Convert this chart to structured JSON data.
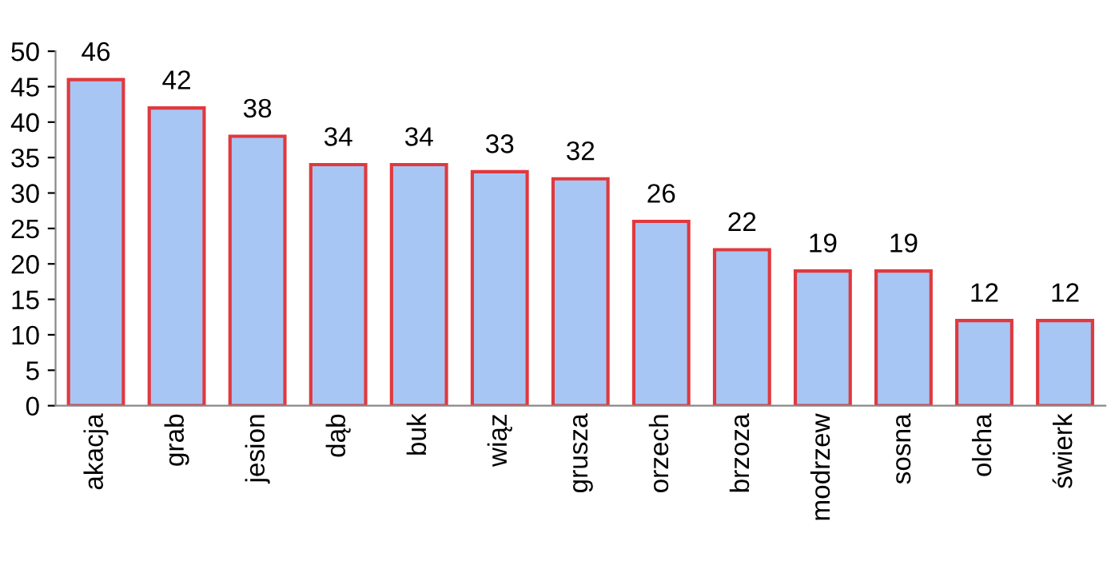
{
  "chart_data": {
    "type": "bar",
    "categories": [
      "akacja",
      "grab",
      "jesion",
      "dąb",
      "buk",
      "wiąz",
      "grusza",
      "orzech",
      "brzoza",
      "modrzew",
      "sosna",
      "olcha",
      "świerk"
    ],
    "values": [
      46,
      42,
      38,
      34,
      34,
      33,
      32,
      26,
      22,
      19,
      19,
      12,
      12
    ],
    "color": "#a8c6f4",
    "ylim": [
      0,
      50
    ],
    "yticks": [
      0,
      5,
      10,
      15,
      20,
      25,
      30,
      35,
      40,
      45,
      50
    ],
    "data_labels": true,
    "grid": false,
    "legend": false
  }
}
